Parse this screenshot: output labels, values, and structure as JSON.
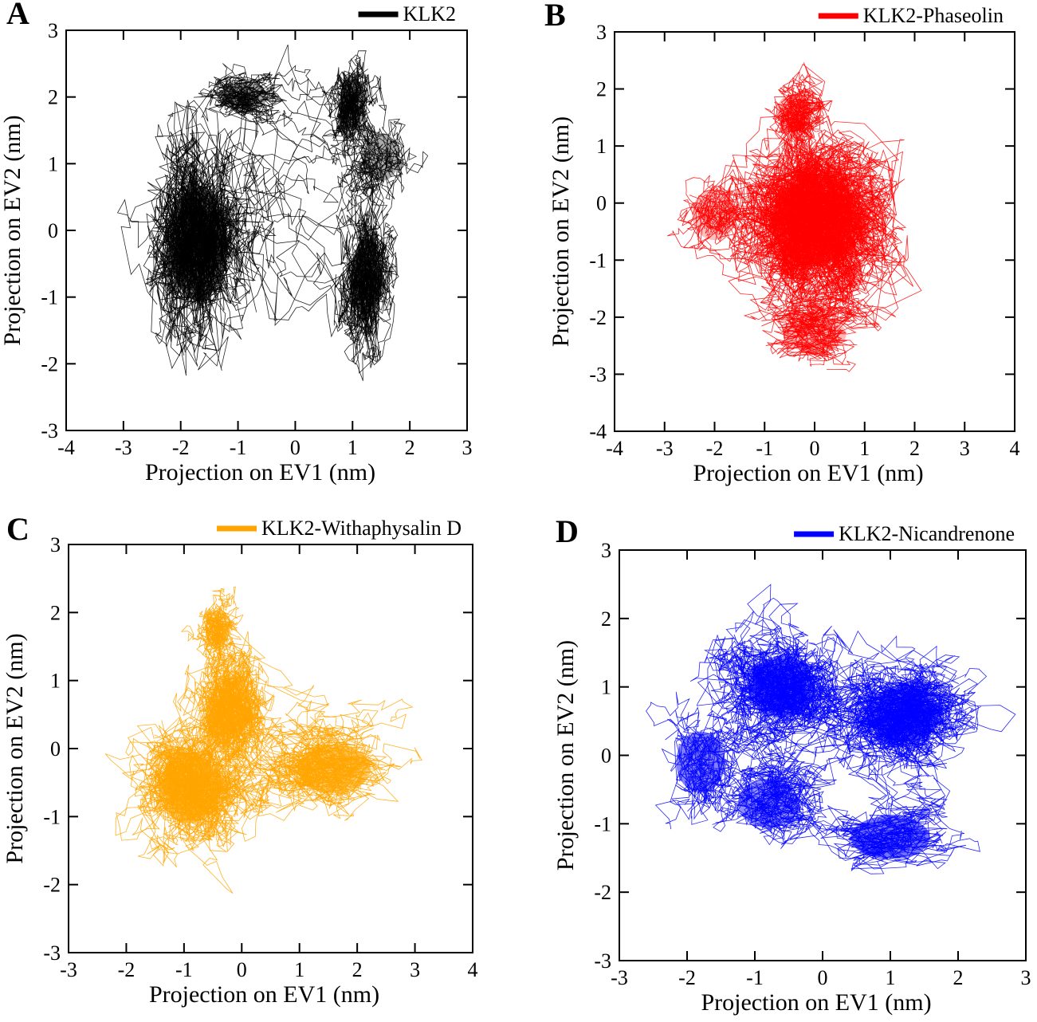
{
  "figure": {
    "description_type": "2D PCA projection trajectories (scatter/line density) for four KLK2 systems"
  },
  "chart_data": [
    {
      "type": "scatter",
      "panel": "A",
      "legend": "KLK2",
      "color": "#000000",
      "xlabel": "Projection on EV1 (nm)",
      "ylabel": "Projection on EV2 (nm)",
      "xlim": [
        -4,
        3
      ],
      "ylim": [
        -3,
        3
      ],
      "xticks": [
        -4,
        -3,
        -2,
        -1,
        0,
        1,
        2,
        3
      ],
      "yticks": [
        -3,
        -2,
        -1,
        0,
        1,
        2,
        3
      ],
      "legend_position": "top-right",
      "clusters": [
        {
          "cx": -1.7,
          "cy": -0.2,
          "sx": 0.55,
          "sy": 0.95,
          "weight": 1.0
        },
        {
          "cx": -0.9,
          "cy": 2.0,
          "sx": 0.45,
          "sy": 0.25,
          "weight": 0.35
        },
        {
          "cx": 1.0,
          "cy": 1.9,
          "sx": 0.25,
          "sy": 0.45,
          "weight": 0.35
        },
        {
          "cx": 1.5,
          "cy": 1.1,
          "sx": 0.35,
          "sy": 0.4,
          "weight": 0.3
        },
        {
          "cx": 1.25,
          "cy": -0.7,
          "sx": 0.3,
          "sy": 0.65,
          "weight": 0.7
        }
      ]
    },
    {
      "type": "scatter",
      "panel": "B",
      "legend": "KLK2-Phaseolin",
      "color": "#ff0000",
      "xlabel": "Projection on EV1 (nm)",
      "ylabel": "Projection on EV2 (nm)",
      "xlim": [
        -4,
        4
      ],
      "ylim": [
        -4,
        3
      ],
      "xticks": [
        -4,
        -3,
        -2,
        -1,
        0,
        1,
        2,
        3,
        4
      ],
      "yticks": [
        -4,
        -3,
        -2,
        -1,
        0,
        1,
        2,
        3
      ],
      "legend_position": "top-right",
      "clusters": [
        {
          "cx": 0.0,
          "cy": -0.3,
          "sx": 0.95,
          "sy": 0.9,
          "weight": 1.0
        },
        {
          "cx": -0.4,
          "cy": 1.6,
          "sx": 0.4,
          "sy": 0.35,
          "weight": 0.2
        },
        {
          "cx": 0.0,
          "cy": -2.3,
          "sx": 0.7,
          "sy": 0.35,
          "weight": 0.2
        },
        {
          "cx": -2.0,
          "cy": -0.2,
          "sx": 0.5,
          "sy": 0.5,
          "weight": 0.15
        }
      ]
    },
    {
      "type": "scatter",
      "panel": "C",
      "legend": "KLK2-Withaphysalin D",
      "color": "#ffa500",
      "xlabel": "Projection on EV1 (nm)",
      "ylabel": "Projection on EV2 (nm)",
      "xlim": [
        -3,
        4
      ],
      "ylim": [
        -3,
        3
      ],
      "xticks": [
        -3,
        -2,
        -1,
        0,
        1,
        2,
        3,
        4
      ],
      "yticks": [
        -3,
        -2,
        -1,
        0,
        1,
        2,
        3
      ],
      "legend_position": "top-right",
      "clusters": [
        {
          "cx": -0.9,
          "cy": -0.6,
          "sx": 0.6,
          "sy": 0.55,
          "weight": 1.0
        },
        {
          "cx": -0.4,
          "cy": 1.8,
          "sx": 0.25,
          "sy": 0.25,
          "weight": 0.3
        },
        {
          "cx": -0.2,
          "cy": 0.6,
          "sx": 0.4,
          "sy": 0.5,
          "weight": 0.5
        },
        {
          "cx": 1.6,
          "cy": -0.3,
          "sx": 0.7,
          "sy": 0.4,
          "weight": 0.7
        }
      ]
    },
    {
      "type": "scatter",
      "panel": "D",
      "legend": "KLK2-Nicandrenone",
      "color": "#0000ff",
      "xlabel": "Projection on EV1 (nm)",
      "ylabel": "Projection on EV2 (nm)",
      "xlim": [
        -3,
        3
      ],
      "ylim": [
        -3,
        3
      ],
      "xticks": [
        -3,
        -2,
        -1,
        0,
        1,
        2,
        3
      ],
      "yticks": [
        -3,
        -2,
        -1,
        0,
        1,
        2,
        3
      ],
      "legend_position": "top-right",
      "clusters": [
        {
          "cx": -1.8,
          "cy": -0.1,
          "sx": 0.4,
          "sy": 0.5,
          "weight": 0.6
        },
        {
          "cx": -0.6,
          "cy": 1.0,
          "sx": 0.55,
          "sy": 0.5,
          "weight": 0.7
        },
        {
          "cx": 1.2,
          "cy": 0.6,
          "sx": 0.6,
          "sy": 0.45,
          "weight": 0.8
        },
        {
          "cx": 1.0,
          "cy": -1.2,
          "sx": 0.65,
          "sy": 0.35,
          "weight": 0.7
        },
        {
          "cx": -0.8,
          "cy": -0.7,
          "sx": 0.5,
          "sy": 0.4,
          "weight": 0.5
        }
      ]
    }
  ]
}
